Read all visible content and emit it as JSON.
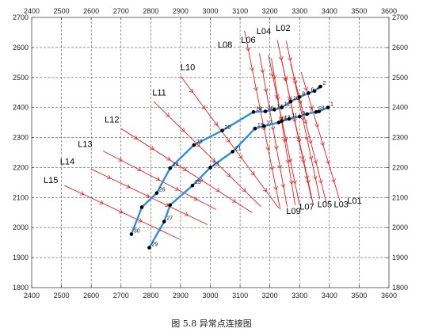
{
  "caption": "图 5.8 异常点连接图",
  "chart_data": {
    "type": "scatter",
    "xlim": [
      2400,
      3600
    ],
    "ylim": [
      1800,
      2700
    ],
    "xticks": [
      2400,
      2500,
      2600,
      2700,
      2800,
      2900,
      3000,
      3100,
      3200,
      3300,
      3400,
      3500,
      3600
    ],
    "yticks": [
      1800,
      1900,
      2000,
      2100,
      2200,
      2300,
      2400,
      2500,
      2600,
      2700
    ],
    "grid": true,
    "grid_style": "dashed",
    "colors": {
      "survey_lines": "#ee1c1c",
      "connections": "#2b8fe0",
      "points": "#000000"
    },
    "survey_lines": [
      {
        "name": "L01",
        "start": [
          3305,
          2518
        ],
        "end": [
          3435,
          2090
        ],
        "label_at": [
          3460,
          2080
        ]
      },
      {
        "name": "L02",
        "start": [
          3255,
          2622
        ],
        "end": [
          3368,
          2095
        ],
        "label_at": [
          3220,
          2655
        ]
      },
      {
        "name": "L03",
        "start": [
          3270,
          2545
        ],
        "end": [
          3390,
          2082
        ],
        "label_at": [
          3415,
          2068
        ]
      },
      {
        "name": "L04",
        "start": [
          3225,
          2625
        ],
        "end": [
          3340,
          2095
        ],
        "label_at": [
          3155,
          2645
        ]
      },
      {
        "name": "L05",
        "start": [
          3240,
          2555
        ],
        "end": [
          3345,
          2080
        ],
        "label_at": [
          3360,
          2068
        ]
      },
      {
        "name": "L06",
        "start": [
          3195,
          2575
        ],
        "end": [
          3300,
          2075
        ],
        "label_at": [
          3103,
          2615
        ]
      },
      {
        "name": "L07",
        "start": [
          3205,
          2565
        ],
        "end": [
          3285,
          2075
        ],
        "label_at": [
          3300,
          2060
        ]
      },
      {
        "name": "L08",
        "start": [
          3165,
          2580
        ],
        "end": [
          3258,
          2070
        ],
        "label_at": [
          3025,
          2600
        ]
      },
      {
        "name": "L09",
        "start": [
          3115,
          2655
        ],
        "end": [
          3235,
          2060
        ],
        "label_at": [
          3255,
          2045
        ]
      },
      {
        "name": "L10",
        "start": [
          2900,
          2505
        ],
        "end": [
          3230,
          2065
        ],
        "label_at": [
          2900,
          2525
        ]
      },
      {
        "name": "L11",
        "start": [
          2810,
          2420
        ],
        "end": [
          3170,
          2070
        ],
        "label_at": [
          2805,
          2440
        ]
      },
      {
        "name": "L12",
        "start": [
          2700,
          2330
        ],
        "end": [
          3140,
          2050
        ],
        "label_at": [
          2645,
          2350
        ]
      },
      {
        "name": "L13",
        "start": [
          2640,
          2255
        ],
        "end": [
          3020,
          2060
        ],
        "label_at": [
          2555,
          2268
        ]
      },
      {
        "name": "L14",
        "start": [
          2600,
          2195
        ],
        "end": [
          2990,
          2010
        ],
        "label_at": [
          2495,
          2210
        ]
      },
      {
        "name": "L15",
        "start": [
          2510,
          2140
        ],
        "end": [
          2900,
          1960
        ],
        "label_at": [
          2440,
          2148
        ]
      }
    ],
    "chain_upper": [
      {
        "id": "30",
        "x": 2735,
        "y": 1978
      },
      {
        "id": "",
        "x": 2770,
        "y": 2068
      },
      {
        "id": "26",
        "x": 2820,
        "y": 2115
      },
      {
        "id": "24",
        "x": 2865,
        "y": 2198
      },
      {
        "id": "22",
        "x": 2945,
        "y": 2275
      },
      {
        "id": "20",
        "x": 3040,
        "y": 2323
      },
      {
        "id": "18",
        "x": 3145,
        "y": 2385
      },
      {
        "id": "16",
        "x": 3185,
        "y": 2387
      },
      {
        "id": "14",
        "x": 3215,
        "y": 2393
      },
      {
        "id": "12",
        "x": 3240,
        "y": 2400
      },
      {
        "id": "10",
        "x": 3270,
        "y": 2420
      },
      {
        "id": "8",
        "x": 3300,
        "y": 2435
      },
      {
        "id": "6",
        "x": 3330,
        "y": 2448
      },
      {
        "id": "4",
        "x": 3350,
        "y": 2455
      },
      {
        "id": "2",
        "x": 3370,
        "y": 2470
      }
    ],
    "chain_lower": [
      {
        "id": "29",
        "x": 2795,
        "y": 1933
      },
      {
        "id": "27",
        "x": 2845,
        "y": 2020
      },
      {
        "id": "",
        "x": 2865,
        "y": 2075
      },
      {
        "id": "25",
        "x": 2940,
        "y": 2140
      },
      {
        "id": "23",
        "x": 3000,
        "y": 2200
      },
      {
        "id": "21",
        "x": 3075,
        "y": 2253
      },
      {
        "id": "19",
        "x": 3150,
        "y": 2330
      },
      {
        "id": "17",
        "x": 3180,
        "y": 2338
      },
      {
        "id": "15",
        "x": 3230,
        "y": 2350
      },
      {
        "id": "13",
        "x": 3240,
        "y": 2355
      },
      {
        "id": "11",
        "x": 3265,
        "y": 2362
      },
      {
        "id": "9",
        "x": 3300,
        "y": 2370
      },
      {
        "id": "7",
        "x": 3325,
        "y": 2378
      },
      {
        "id": "5",
        "x": 3355,
        "y": 2385
      },
      {
        "id": "3",
        "x": 3365,
        "y": 2387
      },
      {
        "id": "1",
        "x": 3395,
        "y": 2400
      }
    ]
  }
}
